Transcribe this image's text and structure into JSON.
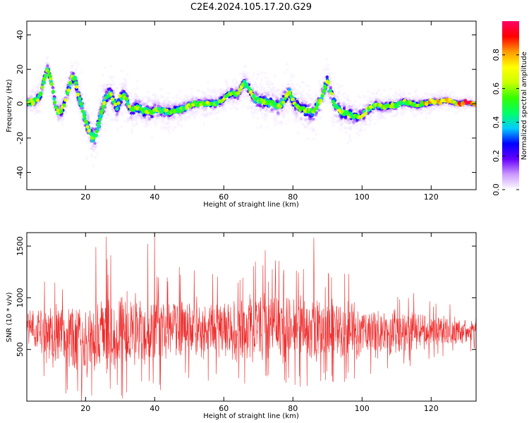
{
  "title": "C2E4.2024.105.17.20.G29",
  "colorbar": {
    "label": "Normalized spectral amplitude",
    "ticks": [
      "0.0",
      "0.2",
      "0.4",
      "0.6",
      "0.8"
    ],
    "stops": [
      "#ffffff",
      "#cc99ff",
      "#6600ff",
      "#0000ff",
      "#00ccff",
      "#00ff66",
      "#33ff00",
      "#ccff00",
      "#ffff00",
      "#ff9900",
      "#ff0000",
      "#ff0066"
    ]
  },
  "chart_data": [
    {
      "type": "scatter",
      "xlabel": "Height of straight line (km)",
      "ylabel": "Frequency (Hz)",
      "xlim": [
        3,
        133
      ],
      "ylim": [
        -50,
        48
      ],
      "xticks": [
        "20",
        "40",
        "60",
        "80",
        "100",
        "120"
      ],
      "yticks": [
        "40",
        "20",
        "0",
        "-20",
        "-40"
      ],
      "ridge": {
        "x": [
          3,
          5,
          7,
          8,
          9,
          10,
          11,
          12,
          13,
          14,
          15,
          16,
          17,
          18,
          19,
          20,
          21,
          22,
          23,
          24,
          25,
          26,
          27,
          28,
          29,
          30,
          31,
          32,
          33,
          34,
          35,
          36,
          37,
          38,
          39,
          40,
          42,
          44,
          46,
          48,
          50,
          52,
          54,
          56,
          58,
          60,
          62,
          64,
          65,
          66,
          67,
          68,
          69,
          70,
          72,
          74,
          76,
          78,
          79,
          80,
          81,
          82,
          84,
          86,
          88,
          89,
          90,
          91,
          92,
          93,
          94,
          96,
          98,
          100,
          102,
          104,
          106,
          108,
          110,
          112,
          114,
          116,
          118,
          120,
          122,
          124,
          126,
          128,
          130,
          132
        ],
        "y": [
          1,
          1,
          5,
          14,
          20,
          14,
          2,
          -5,
          -4,
          0,
          8,
          15,
          14,
          4,
          -2,
          -10,
          -15,
          -20,
          -18,
          -10,
          -2,
          4,
          6,
          3,
          -3,
          3,
          5,
          2,
          -4,
          -3,
          -2,
          -3,
          -5,
          -4,
          -6,
          -3,
          -4,
          -5,
          -4,
          -3,
          -1,
          0,
          0,
          0,
          0,
          3,
          6,
          5,
          9,
          12,
          10,
          6,
          3,
          2,
          1,
          0,
          -2,
          4,
          7,
          2,
          -1,
          -3,
          -4,
          -5,
          2,
          8,
          14,
          6,
          0,
          -3,
          -5,
          -6,
          -8,
          -7,
          -3,
          -1,
          -2,
          -1,
          -1,
          1,
          0,
          -1,
          0,
          1,
          1,
          2,
          1,
          0,
          1,
          0
        ]
      },
      "spread": {
        "x": [
          3,
          10,
          18,
          22,
          25,
          30,
          40,
          50,
          60,
          66,
          70,
          80,
          86,
          90,
          95,
          105,
          115,
          125,
          133
        ],
        "hz": [
          4,
          6,
          8,
          12,
          10,
          8,
          7,
          5,
          5,
          6,
          8,
          8,
          9,
          8,
          8,
          5,
          4,
          3,
          2
        ]
      },
      "dot_count": 3600,
      "annotation": "dot colour = normalized spectral amplitude (colorbar)"
    },
    {
      "type": "line",
      "xlabel": "Height of straight line (km)",
      "ylabel": "SNR (10 * v/v)",
      "xlim": [
        3,
        133
      ],
      "ylim": [
        0,
        1630
      ],
      "xticks": [
        "20",
        "40",
        "60",
        "80",
        "100",
        "120"
      ],
      "yticks": [
        "1500",
        "1000",
        "500"
      ],
      "color": "#ee2a2a",
      "envelope": {
        "x": [
          3,
          10,
          20,
          30,
          40,
          50,
          60,
          70,
          80,
          90,
          100,
          110,
          120,
          133
        ],
        "center": [
          700,
          640,
          600,
          690,
          700,
          710,
          680,
          720,
          680,
          700,
          660,
          680,
          680,
          680
        ],
        "amp": [
          230,
          330,
          430,
          420,
          400,
          330,
          300,
          370,
          370,
          330,
          300,
          250,
          180,
          130
        ]
      },
      "point_count": 1600,
      "spikes": [
        {
          "x": 26,
          "y": 1590
        },
        {
          "x": 40,
          "y": 1630
        },
        {
          "x": 38,
          "y": 1520
        },
        {
          "x": 86,
          "y": 1580
        },
        {
          "x": 23,
          "y": 1490
        },
        {
          "x": 72,
          "y": 1460
        }
      ]
    }
  ]
}
